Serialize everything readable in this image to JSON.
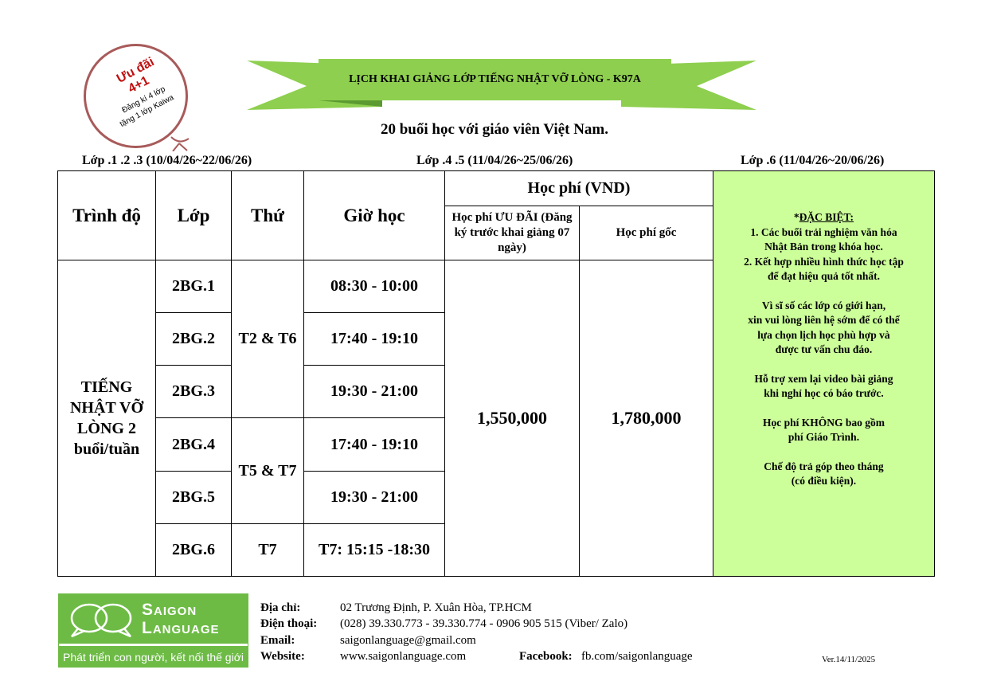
{
  "promo_stamp": {
    "line1": "Ưu đãi",
    "line2": "4+1",
    "line3": "Đăng kí 4 lớp",
    "line4": "tặng 1 lớp Kaiwa",
    "color": "#a85a5a"
  },
  "title": "LỊCH KHAI GIẢNG LỚP TIẾNG NHẬT VỠ LÒNG - K97A",
  "subtitle": "20 buổi học với giáo viên Việt Nam.",
  "class_periods": [
    "Lớp .1 .2 .3 (10/04/26~22/06/26)",
    "Lớp .4 .5 (11/04/26~25/06/26)",
    "Lớp .6 (11/04/26~20/06/26)"
  ],
  "table": {
    "headers": {
      "level": "Trình độ",
      "class": "Lớp",
      "day": "Thứ",
      "time": "Giờ học",
      "fee": "Học phí (VND)",
      "fee_discount": "Học phí ƯU ĐÃI (Đăng ký trước khai giảng 07 ngày)",
      "fee_original": "Học phí gốc"
    },
    "level": "TIẾNG NHẬT VỠ LÒNG 2 buổi/tuần",
    "rows": [
      {
        "class": "2BG.1",
        "time": "08:30 - 10:00"
      },
      {
        "class": "2BG.2",
        "time": "17:40 - 19:10"
      },
      {
        "class": "2BG.3",
        "time": "19:30 - 21:00"
      },
      {
        "class": "2BG.4",
        "time": "17:40 - 19:10"
      },
      {
        "class": "2BG.5",
        "time": "19:30 - 21:00"
      },
      {
        "class": "2BG.6",
        "time": "T7: 15:15 -18:30"
      }
    ],
    "days": [
      "T2 & T6",
      "T5 & T7",
      "T7"
    ],
    "fee_discount": "1,550,000",
    "fee_original": "1,780,000",
    "notes": {
      "heading": "ĐẶC BIỆT:",
      "lines": [
        "1. Các buổi trải nghiệm văn hóa",
        "Nhật Bản trong khóa học.",
        "2. Kết hợp nhiều hình thức học tập",
        "để đạt hiệu quả tốt nhất.",
        "Vì sĩ số các lớp có giới hạn,",
        "xin vui lòng liên hệ sớm để có thể",
        "lựa chọn lịch học phù hợp và",
        "được tư vấn chu đáo.",
        "Hỗ trợ xem lại video bài giảng",
        "khi nghỉ học có báo trước.",
        "Học phí KHÔNG bao gồm",
        "phí Giáo Trình.",
        "Chế độ trả góp theo tháng",
        "(có điều kiện)."
      ],
      "background": "#ccff99"
    }
  },
  "logo": {
    "name_line1": "Saigon",
    "name_line2": "Language",
    "tagline": "Phát triển con người, kết nối thế giới",
    "color": "#6dbb45"
  },
  "contact": {
    "address_label": "Địa chỉ:",
    "address": "02 Trương Định, P. Xuân Hòa, TP.HCM",
    "phone_label": "Điện thoại:",
    "phone": "(028) 39.330.773 - 39.330.774 - 0906 905 515 (Viber/ Zalo)",
    "email_label": "Email:",
    "email": "saigonlanguage@gmail.com",
    "website_label": "Website:",
    "website": "www.saigonlanguage.com",
    "facebook_label": "Facebook:",
    "facebook": "fb.com/saigonlanguage"
  },
  "version": "Ver.14/11/2025"
}
